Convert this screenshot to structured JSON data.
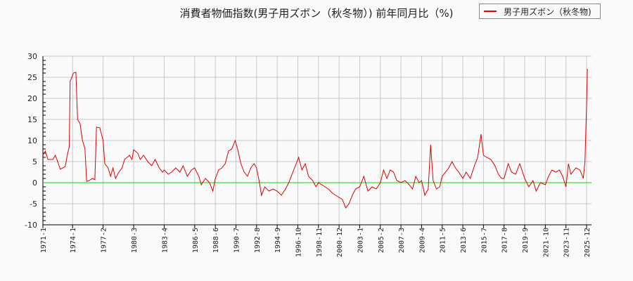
{
  "title": "消費者物価指数(男子用ズボン（秋冬物）) 前年同月比（%)",
  "legend": {
    "label": "男子用ズボン（秋冬物)",
    "color": "#e00000"
  },
  "colors": {
    "series": "#e00000",
    "zero_line": "#00dd00",
    "grid": "#c8c8c8",
    "axis": "#000000",
    "background": "#fafafa"
  },
  "chart_data": {
    "type": "line",
    "title": "消費者物価指数(男子用ズボン（秋冬物）) 前年同月比（%)",
    "xlabel": "",
    "ylabel": "",
    "ylim": [
      -10,
      30
    ],
    "yticks": [
      -10,
      -5,
      0,
      5,
      10,
      15,
      20,
      25,
      30
    ],
    "xticks": [
      "1971-1",
      "1974-1",
      "1977-2",
      "1980-3",
      "1983-4",
      "1986-5",
      "1988-6",
      "1990-7",
      "1992-8",
      "1994-9",
      "1996-10",
      "1998-11",
      "2000-12",
      "2003-1",
      "2005-2",
      "2007-3",
      "2009-4",
      "2011-5",
      "2013-6",
      "2015-7",
      "2017-8",
      "2019-9",
      "2021-10",
      "2023-11",
      "2025-12"
    ],
    "grid": true,
    "legend_position": "top-right",
    "series": [
      {
        "name": "男子用ズボン（秋冬物)",
        "approx_points": [
          [
            "1971-1",
            6.5
          ],
          [
            "1971-4",
            7.5
          ],
          [
            "1971-7",
            5.5
          ],
          [
            "1972-1",
            5.5
          ],
          [
            "1972-4",
            6.5
          ],
          [
            "1972-7",
            5.0
          ],
          [
            "1972-10",
            3.2
          ],
          [
            "1973-1",
            3.5
          ],
          [
            "1973-4",
            3.8
          ],
          [
            "1973-7",
            7.0
          ],
          [
            "1973-9",
            8.5
          ],
          [
            "1973-10",
            24.0
          ],
          [
            "1973-12",
            25.0
          ],
          [
            "1974-2",
            26.0
          ],
          [
            "1974-5",
            26.2
          ],
          [
            "1974-7",
            15.0
          ],
          [
            "1974-10",
            14.0
          ],
          [
            "1975-1",
            10.0
          ],
          [
            "1975-4",
            8.0
          ],
          [
            "1975-6",
            0.3
          ],
          [
            "1975-9",
            0.5
          ],
          [
            "1976-1",
            1.0
          ],
          [
            "1976-4",
            0.7
          ],
          [
            "1976-6",
            13.2
          ],
          [
            "1976-10",
            13.0
          ],
          [
            "1977-2",
            10.0
          ],
          [
            "1977-4",
            4.5
          ],
          [
            "1977-8",
            3.5
          ],
          [
            "1977-11",
            1.5
          ],
          [
            "1978-2",
            3.5
          ],
          [
            "1978-5",
            1.0
          ],
          [
            "1978-9",
            2.5
          ],
          [
            "1979-1",
            3.5
          ],
          [
            "1979-4",
            5.5
          ],
          [
            "1979-10",
            6.5
          ],
          [
            "1980-1",
            5.5
          ],
          [
            "1980-3",
            7.8
          ],
          [
            "1980-8",
            7.0
          ],
          [
            "1980-11",
            5.5
          ],
          [
            "1981-3",
            6.5
          ],
          [
            "1981-8",
            5.0
          ],
          [
            "1982-1",
            4.0
          ],
          [
            "1982-5",
            5.5
          ],
          [
            "1982-10",
            3.5
          ],
          [
            "1983-2",
            2.5
          ],
          [
            "1983-4",
            3.0
          ],
          [
            "1983-9",
            2.0
          ],
          [
            "1984-1",
            2.5
          ],
          [
            "1984-6",
            3.5
          ],
          [
            "1984-11",
            2.5
          ],
          [
            "1985-3",
            4.0
          ],
          [
            "1985-8",
            1.5
          ],
          [
            "1986-1",
            3.0
          ],
          [
            "1986-5",
            3.5
          ],
          [
            "1986-10",
            1.5
          ],
          [
            "1987-1",
            -0.5
          ],
          [
            "1987-6",
            1.0
          ],
          [
            "1987-11",
            0.0
          ],
          [
            "1988-3",
            -2.0
          ],
          [
            "1988-6",
            1.0
          ],
          [
            "1988-10",
            3.0
          ],
          [
            "1989-2",
            3.5
          ],
          [
            "1989-6",
            4.5
          ],
          [
            "1989-10",
            7.5
          ],
          [
            "1990-2",
            8.0
          ],
          [
            "1990-6",
            10.0
          ],
          [
            "1990-9",
            8.0
          ],
          [
            "1991-1",
            4.5
          ],
          [
            "1991-5",
            2.5
          ],
          [
            "1991-9",
            1.5
          ],
          [
            "1992-1",
            3.5
          ],
          [
            "1992-5",
            4.5
          ],
          [
            "1992-8",
            3.5
          ],
          [
            "1992-11",
            0.5
          ],
          [
            "1993-2",
            -3.0
          ],
          [
            "1993-6",
            -1.0
          ],
          [
            "1993-11",
            -2.0
          ],
          [
            "1994-4",
            -1.5
          ],
          [
            "1994-9",
            -2.0
          ],
          [
            "1995-2",
            -3.0
          ],
          [
            "1995-7",
            -1.5
          ],
          [
            "1995-11",
            0.0
          ],
          [
            "1996-3",
            2.0
          ],
          [
            "1996-8",
            4.5
          ],
          [
            "1996-11",
            6.0
          ],
          [
            "1997-3",
            3.0
          ],
          [
            "1997-7",
            4.5
          ],
          [
            "1997-11",
            1.5
          ],
          [
            "1998-4",
            0.5
          ],
          [
            "1998-8",
            -1.0
          ],
          [
            "1998-11",
            0.0
          ],
          [
            "1999-3",
            -0.5
          ],
          [
            "1999-7",
            -1.0
          ],
          [
            "1999-11",
            -1.5
          ],
          [
            "2000-4",
            -2.5
          ],
          [
            "2000-8",
            -3.0
          ],
          [
            "2000-12",
            -3.5
          ],
          [
            "2001-4",
            -4.0
          ],
          [
            "2001-8",
            -6.0
          ],
          [
            "2001-12",
            -5.0
          ],
          [
            "2002-4",
            -3.0
          ],
          [
            "2002-8",
            -1.5
          ],
          [
            "2003-1",
            -1.0
          ],
          [
            "2003-6",
            1.5
          ],
          [
            "2003-11",
            -2.0
          ],
          [
            "2004-4",
            -1.0
          ],
          [
            "2004-9",
            -1.5
          ],
          [
            "2005-2",
            0.0
          ],
          [
            "2005-6",
            3.0
          ],
          [
            "2005-10",
            1.0
          ],
          [
            "2006-2",
            3.0
          ],
          [
            "2006-6",
            2.5
          ],
          [
            "2006-10",
            0.5
          ],
          [
            "2007-3",
            0.0
          ],
          [
            "2007-8",
            0.5
          ],
          [
            "2008-1",
            -0.5
          ],
          [
            "2008-5",
            -1.5
          ],
          [
            "2008-9",
            1.5
          ],
          [
            "2009-1",
            0.0
          ],
          [
            "2009-4",
            0.5
          ],
          [
            "2009-8",
            -3.0
          ],
          [
            "2009-12",
            -1.5
          ],
          [
            "2010-3",
            9.0
          ],
          [
            "2010-6",
            0.5
          ],
          [
            "2010-10",
            -1.5
          ],
          [
            "2011-2",
            -1.0
          ],
          [
            "2011-5",
            1.5
          ],
          [
            "2011-9",
            2.5
          ],
          [
            "2012-1",
            3.5
          ],
          [
            "2012-5",
            5.0
          ],
          [
            "2012-9",
            3.5
          ],
          [
            "2013-1",
            2.5
          ],
          [
            "2013-6",
            1.0
          ],
          [
            "2013-10",
            2.5
          ],
          [
            "2014-3",
            1.0
          ],
          [
            "2014-8",
            4.0
          ],
          [
            "2014-12",
            6.0
          ],
          [
            "2015-4",
            11.5
          ],
          [
            "2015-7",
            6.5
          ],
          [
            "2015-11",
            6.0
          ],
          [
            "2016-4",
            5.5
          ],
          [
            "2016-9",
            4.0
          ],
          [
            "2017-1",
            2.0
          ],
          [
            "2017-5",
            1.0
          ],
          [
            "2017-8",
            1.0
          ],
          [
            "2018-1",
            4.5
          ],
          [
            "2018-5",
            2.5
          ],
          [
            "2018-10",
            2.0
          ],
          [
            "2019-3",
            4.5
          ],
          [
            "2019-9",
            1.0
          ],
          [
            "2020-2",
            -1.0
          ],
          [
            "2020-7",
            0.5
          ],
          [
            "2020-11",
            -2.0
          ],
          [
            "2021-4",
            0.0
          ],
          [
            "2021-10",
            -0.5
          ],
          [
            "2022-2",
            1.5
          ],
          [
            "2022-6",
            3.0
          ],
          [
            "2022-11",
            2.5
          ],
          [
            "2023-3",
            3.0
          ],
          [
            "2023-7",
            1.5
          ],
          [
            "2023-11",
            -1.0
          ],
          [
            "2024-2",
            4.5
          ],
          [
            "2024-5",
            2.0
          ],
          [
            "2024-11",
            3.5
          ],
          [
            "2025-4",
            3.0
          ],
          [
            "2025-8",
            1.0
          ],
          [
            "2025-10",
            5.0
          ],
          [
            "2025-12",
            18.5
          ],
          [
            "2026-1",
            27.0
          ]
        ]
      }
    ]
  }
}
